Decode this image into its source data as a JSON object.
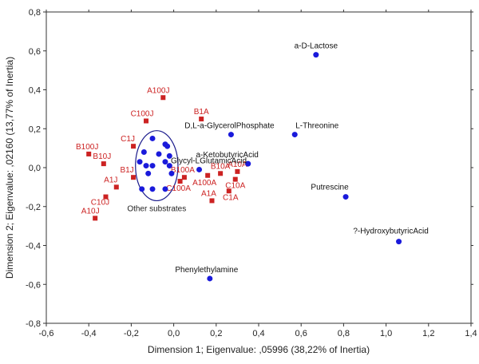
{
  "chart_data": {
    "type": "scatter",
    "xlabel": "Dimension 1; Eigenvalue: ,05996 (38,22% of Inertia)",
    "ylabel": "Dimension 2; Eigenvalue: ,02160 (13,77% of Inertia)",
    "xlim": [
      -0.6,
      1.4
    ],
    "ylim": [
      -0.8,
      0.8
    ],
    "xticks": [
      -0.6,
      -0.4,
      -0.2,
      0.0,
      0.2,
      0.4,
      0.6,
      0.8,
      1.0,
      1.2,
      1.4
    ],
    "yticks": [
      -0.8,
      -0.6,
      -0.4,
      -0.2,
      0.0,
      0.2,
      0.4,
      0.6,
      0.8
    ],
    "xtick_labels": [
      "-0,6",
      "-0,4",
      "-0,2",
      "0,0",
      "0,2",
      "0,4",
      "0,6",
      "0,8",
      "1,0",
      "1,2",
      "1,4"
    ],
    "ytick_labels": [
      "-0,8",
      "-0,6",
      "-0,4",
      "-0,2",
      "0,0",
      "0,2",
      "0,4",
      "0,6",
      "0,8"
    ],
    "grid": false,
    "colors": {
      "samples": "#cc2222",
      "substrates": "#1a1adb",
      "ellipse": "#1a1a8c",
      "axes": "#333333"
    },
    "series": [
      {
        "marker": "square",
        "points": [
          {
            "label": "A100J",
            "x": -0.05,
            "y": 0.36
          },
          {
            "label": "C100J",
            "x": -0.13,
            "y": 0.24
          },
          {
            "label": "B1A",
            "x": 0.13,
            "y": 0.25
          },
          {
            "label": "C1J",
            "x": -0.19,
            "y": 0.11
          },
          {
            "label": "B100J",
            "x": -0.4,
            "y": 0.07
          },
          {
            "label": "B10J",
            "x": -0.33,
            "y": 0.02
          },
          {
            "label": "A1J",
            "x": -0.27,
            "y": -0.1
          },
          {
            "label": "B1J",
            "x": -0.19,
            "y": -0.05
          },
          {
            "label": "C10J",
            "x": -0.32,
            "y": -0.15
          },
          {
            "label": "A10J",
            "x": -0.37,
            "y": -0.26
          },
          {
            "label": "B100A",
            "x": 0.05,
            "y": -0.05
          },
          {
            "label": "C100A",
            "x": 0.03,
            "y": -0.07
          },
          {
            "label": "A100A",
            "x": 0.16,
            "y": -0.04
          },
          {
            "label": "B10A",
            "x": 0.22,
            "y": -0.03
          },
          {
            "label": "A10A",
            "x": 0.3,
            "y": -0.02
          },
          {
            "label": "C10A",
            "x": 0.29,
            "y": -0.06
          },
          {
            "label": "A1A",
            "x": 0.18,
            "y": -0.17
          },
          {
            "label": "C1A",
            "x": 0.26,
            "y": -0.12
          }
        ]
      },
      {
        "marker": "circle",
        "points": [
          {
            "label": "a-D-Lactose",
            "x": 0.67,
            "y": 0.58
          },
          {
            "label": "D,L-a-GlycerolPhosphate",
            "x": 0.27,
            "y": 0.17
          },
          {
            "label": "L-Threonine",
            "x": 0.57,
            "y": 0.17
          },
          {
            "label": "a-KetobutyricAcid",
            "x": 0.35,
            "y": 0.02
          },
          {
            "label": "Glycyl-LGlutamicAcid",
            "x": 0.12,
            "y": -0.01
          },
          {
            "label": "Putrescine",
            "x": 0.81,
            "y": -0.15
          },
          {
            "label": "?-HydroxybutyricAcid",
            "x": 1.06,
            "y": -0.38
          },
          {
            "label": "Phenylethylamine",
            "x": 0.17,
            "y": -0.57
          },
          {
            "label": "",
            "x": -0.1,
            "y": 0.15
          },
          {
            "label": "",
            "x": -0.04,
            "y": 0.12
          },
          {
            "label": "",
            "x": -0.03,
            "y": 0.11
          },
          {
            "label": "",
            "x": -0.14,
            "y": 0.08
          },
          {
            "label": "",
            "x": -0.07,
            "y": 0.07
          },
          {
            "label": "",
            "x": -0.02,
            "y": 0.06
          },
          {
            "label": "",
            "x": -0.16,
            "y": 0.03
          },
          {
            "label": "",
            "x": -0.04,
            "y": 0.03
          },
          {
            "label": "",
            "x": -0.13,
            "y": 0.01
          },
          {
            "label": "",
            "x": -0.1,
            "y": 0.01
          },
          {
            "label": "",
            "x": -0.02,
            "y": 0.01
          },
          {
            "label": "",
            "x": -0.01,
            "y": -0.03
          },
          {
            "label": "",
            "x": -0.12,
            "y": -0.03
          },
          {
            "label": "",
            "x": -0.15,
            "y": -0.11
          },
          {
            "label": "",
            "x": -0.1,
            "y": -0.11
          },
          {
            "label": "",
            "x": -0.04,
            "y": -0.11
          }
        ]
      }
    ],
    "annotations": [
      {
        "text": "Other substrates",
        "shape": "ellipse",
        "cx": -0.08,
        "cy": 0.01,
        "rx": 0.1,
        "ry": 0.18
      }
    ]
  }
}
